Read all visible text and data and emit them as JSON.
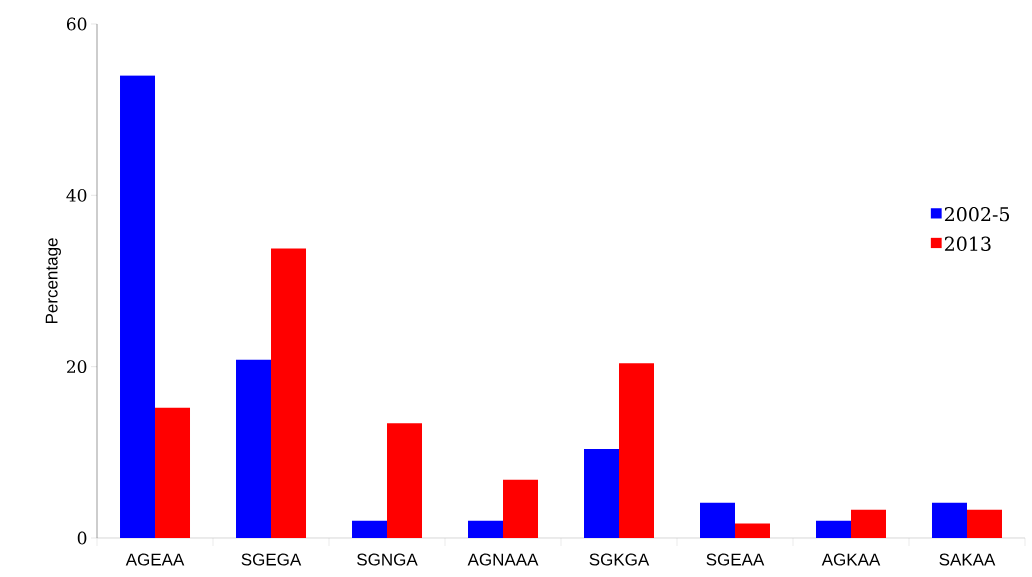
{
  "chart_data": {
    "type": "bar",
    "ylabel": "Percentage",
    "categories": [
      "AGEAA",
      "SGEGA",
      "SGNGA",
      "AGNAAA",
      "SGKGA",
      "SGEAA",
      "AGKAA",
      "SAKAA"
    ],
    "series": [
      {
        "name": "2002-5",
        "color": "#0000ff",
        "values": [
          54.0,
          20.8,
          2.0,
          2.0,
          10.4,
          4.1,
          2.0,
          4.1
        ]
      },
      {
        "name": "2013",
        "color": "#ff0000",
        "values": [
          15.2,
          33.8,
          13.4,
          6.8,
          20.4,
          1.7,
          3.3,
          3.3
        ]
      }
    ],
    "ylim": [
      0,
      60
    ],
    "yticks": [
      0,
      20,
      40,
      60
    ],
    "legend": "right"
  }
}
